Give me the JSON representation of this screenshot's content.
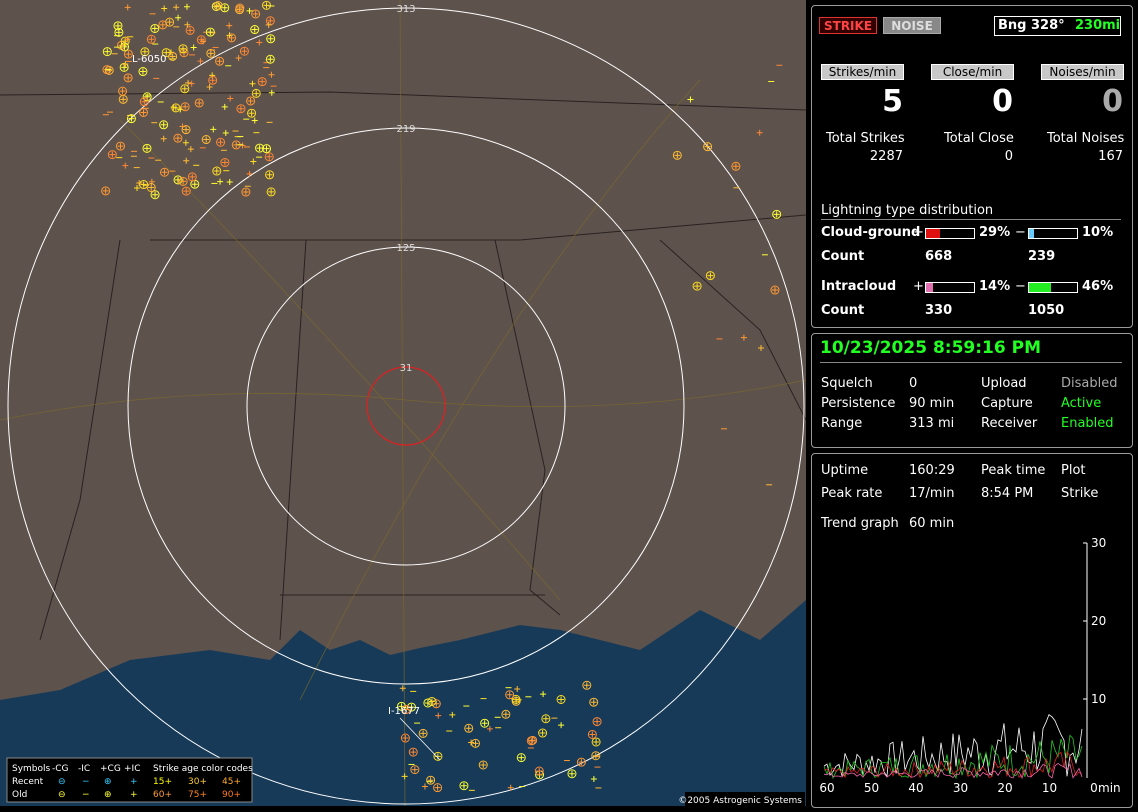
{
  "map": {
    "range_labels": [
      "313",
      "219",
      "125",
      "31"
    ],
    "markers": [
      "L-6050",
      "I-1677"
    ],
    "legend": {
      "symbols": "Symbols",
      "types": [
        "-CG",
        "-IC",
        "+CG",
        "+IC"
      ],
      "age_title": "Strike age color codes",
      "rows": [
        "Recent",
        "Old"
      ],
      "ages": [
        [
          "15+",
          "30+",
          "45+"
        ],
        [
          "60+",
          "75+",
          "90+"
        ]
      ]
    },
    "copyright": "©2005 Astrogenic Systems"
  },
  "status": {
    "strike": "STRIKE",
    "noise": "NOISE",
    "bearing": "Bng 328°",
    "distance": "230mi"
  },
  "rates": [
    {
      "label": "Strikes/min",
      "value": "5"
    },
    {
      "label": "Close/min",
      "value": "0"
    },
    {
      "label": "Noises/min",
      "value": "0"
    }
  ],
  "totals": [
    {
      "label": "Total Strikes",
      "value": "2287"
    },
    {
      "label": "Total Close",
      "value": "0"
    },
    {
      "label": "Total Noises",
      "value": "167"
    }
  ],
  "distribution": {
    "title": "Lightning type distribution",
    "count_label": "Count",
    "rows": [
      {
        "name": "Cloud-ground",
        "pos": {
          "value": 29,
          "label": "29%"
        },
        "neg": {
          "value": 10,
          "label": "10%"
        },
        "pos_count": "668",
        "neg_count": "239"
      },
      {
        "name": "Intracloud",
        "pos": {
          "value": 14,
          "label": "14%"
        },
        "neg": {
          "value": 46,
          "label": "46%"
        },
        "pos_count": "330",
        "neg_count": "1050"
      }
    ],
    "plus": "+",
    "minus": "−"
  },
  "datetime": "10/23/2025 8:59:16 PM",
  "settings": [
    [
      "Squelch",
      "0",
      "Upload",
      "Disabled"
    ],
    [
      "Persistence",
      "90 min",
      "Capture",
      "Active"
    ],
    [
      "Range",
      "313 mi",
      "Receiver",
      "Enabled"
    ]
  ],
  "stats": [
    [
      "Uptime",
      "160:29",
      "Peak time",
      "Plot"
    ],
    [
      "Peak rate",
      "17/min",
      "8:54 PM",
      "Strike"
    ]
  ],
  "trend": {
    "label": "Trend graph",
    "window": "60 min",
    "yticks": [
      "30",
      "20",
      "10"
    ],
    "xticks": [
      "60",
      "50",
      "40",
      "30",
      "20",
      "10",
      "0"
    ],
    "unit": "min"
  }
}
